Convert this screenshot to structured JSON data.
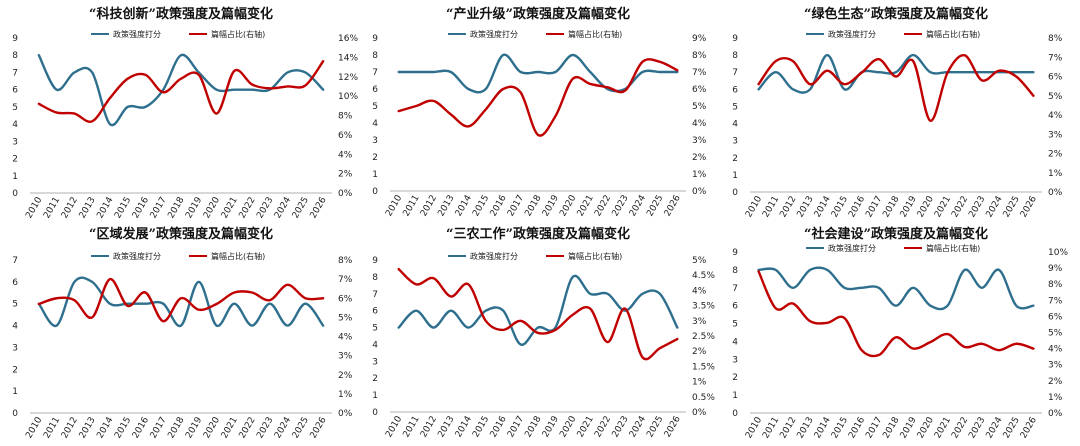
{
  "colors": {
    "series_1": "#2e6f8e",
    "series_2": "#c00000"
  },
  "chart_data": [
    {
      "type": "line",
      "title": "“科技创新”政策强度及篇幅变化",
      "x": [
        "2010",
        "2011",
        "2012",
        "2013",
        "2014",
        "2015",
        "2016",
        "2017",
        "2018",
        "2019",
        "2020",
        "2021",
        "2022",
        "2023",
        "2024",
        "2025",
        "2026"
      ],
      "ylim": [
        0,
        9
      ],
      "yticks": [
        0,
        1,
        2,
        3,
        4,
        5,
        6,
        7,
        8,
        9
      ],
      "y2lim": [
        0,
        16
      ],
      "y2ticks": [
        0,
        2,
        4,
        6,
        8,
        10,
        12,
        14,
        16
      ],
      "y2suffix": "%",
      "series": [
        {
          "name": "政策强度打分",
          "axis": "left",
          "values": [
            8,
            6,
            7,
            7,
            4,
            5,
            5,
            6,
            8,
            7,
            6,
            6,
            6,
            6,
            7,
            7,
            6
          ]
        },
        {
          "name": "篇幅占比(右轴)",
          "axis": "right",
          "values": [
            9.2,
            8.3,
            8.2,
            7.4,
            9.8,
            11.8,
            12.2,
            10.4,
            11.8,
            12.2,
            8.2,
            12.6,
            11.2,
            10.8,
            11.0,
            11.1,
            13.6
          ]
        }
      ]
    },
    {
      "type": "line",
      "title": "“产业升级”政策强度及篇幅变化",
      "x": [
        "2010",
        "2011",
        "2012",
        "2013",
        "2014",
        "2015",
        "2016",
        "2017",
        "2018",
        "2019",
        "2020",
        "2021",
        "2022",
        "2023",
        "2024",
        "2025",
        "2026"
      ],
      "ylim": [
        0,
        9
      ],
      "yticks": [
        0,
        1,
        2,
        3,
        4,
        5,
        6,
        7,
        8,
        9
      ],
      "y2lim": [
        0,
        9
      ],
      "y2ticks": [
        0,
        1,
        2,
        3,
        4,
        5,
        6,
        7,
        8,
        9
      ],
      "y2suffix": "%",
      "series": [
        {
          "name": "政策强度打分",
          "axis": "left",
          "values": [
            7,
            7,
            7,
            7,
            6,
            6,
            8,
            7,
            7,
            7,
            8,
            7,
            6,
            6,
            7,
            7,
            7
          ]
        },
        {
          "name": "篇幅占比(右轴)",
          "axis": "right",
          "values": [
            4.7,
            5.0,
            5.3,
            4.5,
            3.8,
            4.8,
            6.0,
            5.8,
            3.3,
            4.4,
            6.6,
            6.3,
            6.1,
            5.9,
            7.6,
            7.6,
            7.1
          ]
        }
      ]
    },
    {
      "type": "line",
      "title": "“绿色生态”政策强度及篇幅变化",
      "x": [
        "2010",
        "2011",
        "2012",
        "2013",
        "2014",
        "2015",
        "2016",
        "2017",
        "2018",
        "2019",
        "2020",
        "2021",
        "2022",
        "2023",
        "2024",
        "2025",
        "2026"
      ],
      "ylim": [
        0,
        9
      ],
      "yticks": [
        0,
        1,
        2,
        3,
        4,
        5,
        6,
        7,
        8,
        9
      ],
      "y2lim": [
        0,
        8
      ],
      "y2ticks": [
        0,
        1,
        2,
        3,
        4,
        5,
        6,
        7,
        8
      ],
      "y2suffix": "%",
      "series": [
        {
          "name": "政策强度打分",
          "axis": "left",
          "values": [
            6,
            7,
            6,
            6,
            8,
            6,
            7,
            7,
            7,
            8,
            7,
            7,
            7,
            7,
            7,
            7,
            7
          ]
        },
        {
          "name": "篇幅占比(右轴)",
          "axis": "right",
          "values": [
            5.6,
            6.8,
            6.8,
            5.6,
            6.3,
            5.6,
            6.2,
            6.9,
            6.0,
            6.8,
            3.7,
            6.2,
            7.1,
            5.8,
            6.3,
            6.0,
            5.0
          ]
        }
      ]
    },
    {
      "type": "line",
      "title": "“区域发展”政策强度及篇幅变化",
      "x": [
        "2010",
        "2011",
        "2012",
        "2013",
        "2014",
        "2015",
        "2016",
        "2017",
        "2018",
        "2019",
        "2020",
        "2021",
        "2022",
        "2023",
        "2024",
        "2025",
        "2026"
      ],
      "ylim": [
        0,
        7
      ],
      "yticks": [
        0,
        1,
        2,
        3,
        4,
        5,
        6,
        7
      ],
      "y2lim": [
        0,
        8
      ],
      "y2ticks": [
        0,
        1,
        2,
        3,
        4,
        5,
        6,
        7,
        8
      ],
      "y2suffix": "%",
      "series": [
        {
          "name": "政策强度打分",
          "axis": "left",
          "values": [
            5,
            4,
            6,
            6,
            5,
            5,
            5,
            5,
            4,
            6,
            4,
            5,
            4,
            5,
            4,
            5,
            4
          ]
        },
        {
          "name": "篇幅占比(右轴)",
          "axis": "right",
          "values": [
            5.7,
            6.0,
            5.9,
            5.0,
            7.0,
            5.6,
            6.3,
            4.8,
            6.0,
            5.4,
            5.7,
            6.3,
            6.3,
            5.9,
            6.7,
            6.0,
            6.0
          ]
        }
      ]
    },
    {
      "type": "line",
      "title": "“三农工作”政策强度及篇幅变化",
      "x": [
        "2010",
        "2011",
        "2012",
        "2013",
        "2014",
        "2015",
        "2016",
        "2017",
        "2018",
        "2019",
        "2020",
        "2021",
        "2022",
        "2023",
        "2024",
        "2025",
        "2026"
      ],
      "ylim": [
        0,
        9
      ],
      "yticks": [
        0,
        1,
        2,
        3,
        4,
        5,
        6,
        7,
        8,
        9
      ],
      "y2lim": [
        0,
        5
      ],
      "y2ticks": [
        0,
        0.5,
        1,
        1.5,
        2,
        2.5,
        3,
        3.5,
        4,
        4.5,
        5
      ],
      "y2suffix": "%",
      "series": [
        {
          "name": "政策强度打分",
          "axis": "left",
          "values": [
            5,
            6,
            5,
            6,
            5,
            6,
            6,
            4,
            5,
            5,
            8,
            7,
            7,
            6,
            7,
            7,
            5
          ]
        },
        {
          "name": "篇幅占比(右轴)",
          "axis": "right",
          "values": [
            4.7,
            4.2,
            4.4,
            3.8,
            4.2,
            3.0,
            2.7,
            3.0,
            2.6,
            2.7,
            3.2,
            3.4,
            2.3,
            3.4,
            1.8,
            2.1,
            2.4
          ]
        }
      ]
    },
    {
      "type": "line",
      "title": "“社会建设”政策强度及篇幅变化",
      "x": [
        "2010",
        "2011",
        "2012",
        "2013",
        "2014",
        "2015",
        "2016",
        "2017",
        "2018",
        "2019",
        "2020",
        "2021",
        "2022",
        "2023",
        "2024",
        "2025",
        "2026"
      ],
      "ylim": [
        0,
        9
      ],
      "yticks": [
        0,
        1,
        2,
        3,
        4,
        5,
        6,
        7,
        8,
        9
      ],
      "y2lim": [
        0,
        10
      ],
      "y2ticks": [
        0,
        1,
        2,
        3,
        4,
        5,
        6,
        7,
        8,
        9,
        10
      ],
      "y2suffix": "%",
      "series": [
        {
          "name": "政策强度打分",
          "axis": "left",
          "values": [
            8,
            8,
            7,
            8,
            8,
            7,
            7,
            7,
            6,
            7,
            6,
            6,
            8,
            7,
            8,
            6,
            6
          ]
        },
        {
          "name": "篇幅占比(右轴)",
          "axis": "right",
          "values": [
            8.8,
            6.5,
            6.8,
            5.7,
            5.6,
            5.9,
            3.9,
            3.6,
            4.7,
            4.0,
            4.4,
            4.9,
            4.1,
            4.3,
            3.9,
            4.3,
            4.0
          ]
        }
      ]
    }
  ]
}
